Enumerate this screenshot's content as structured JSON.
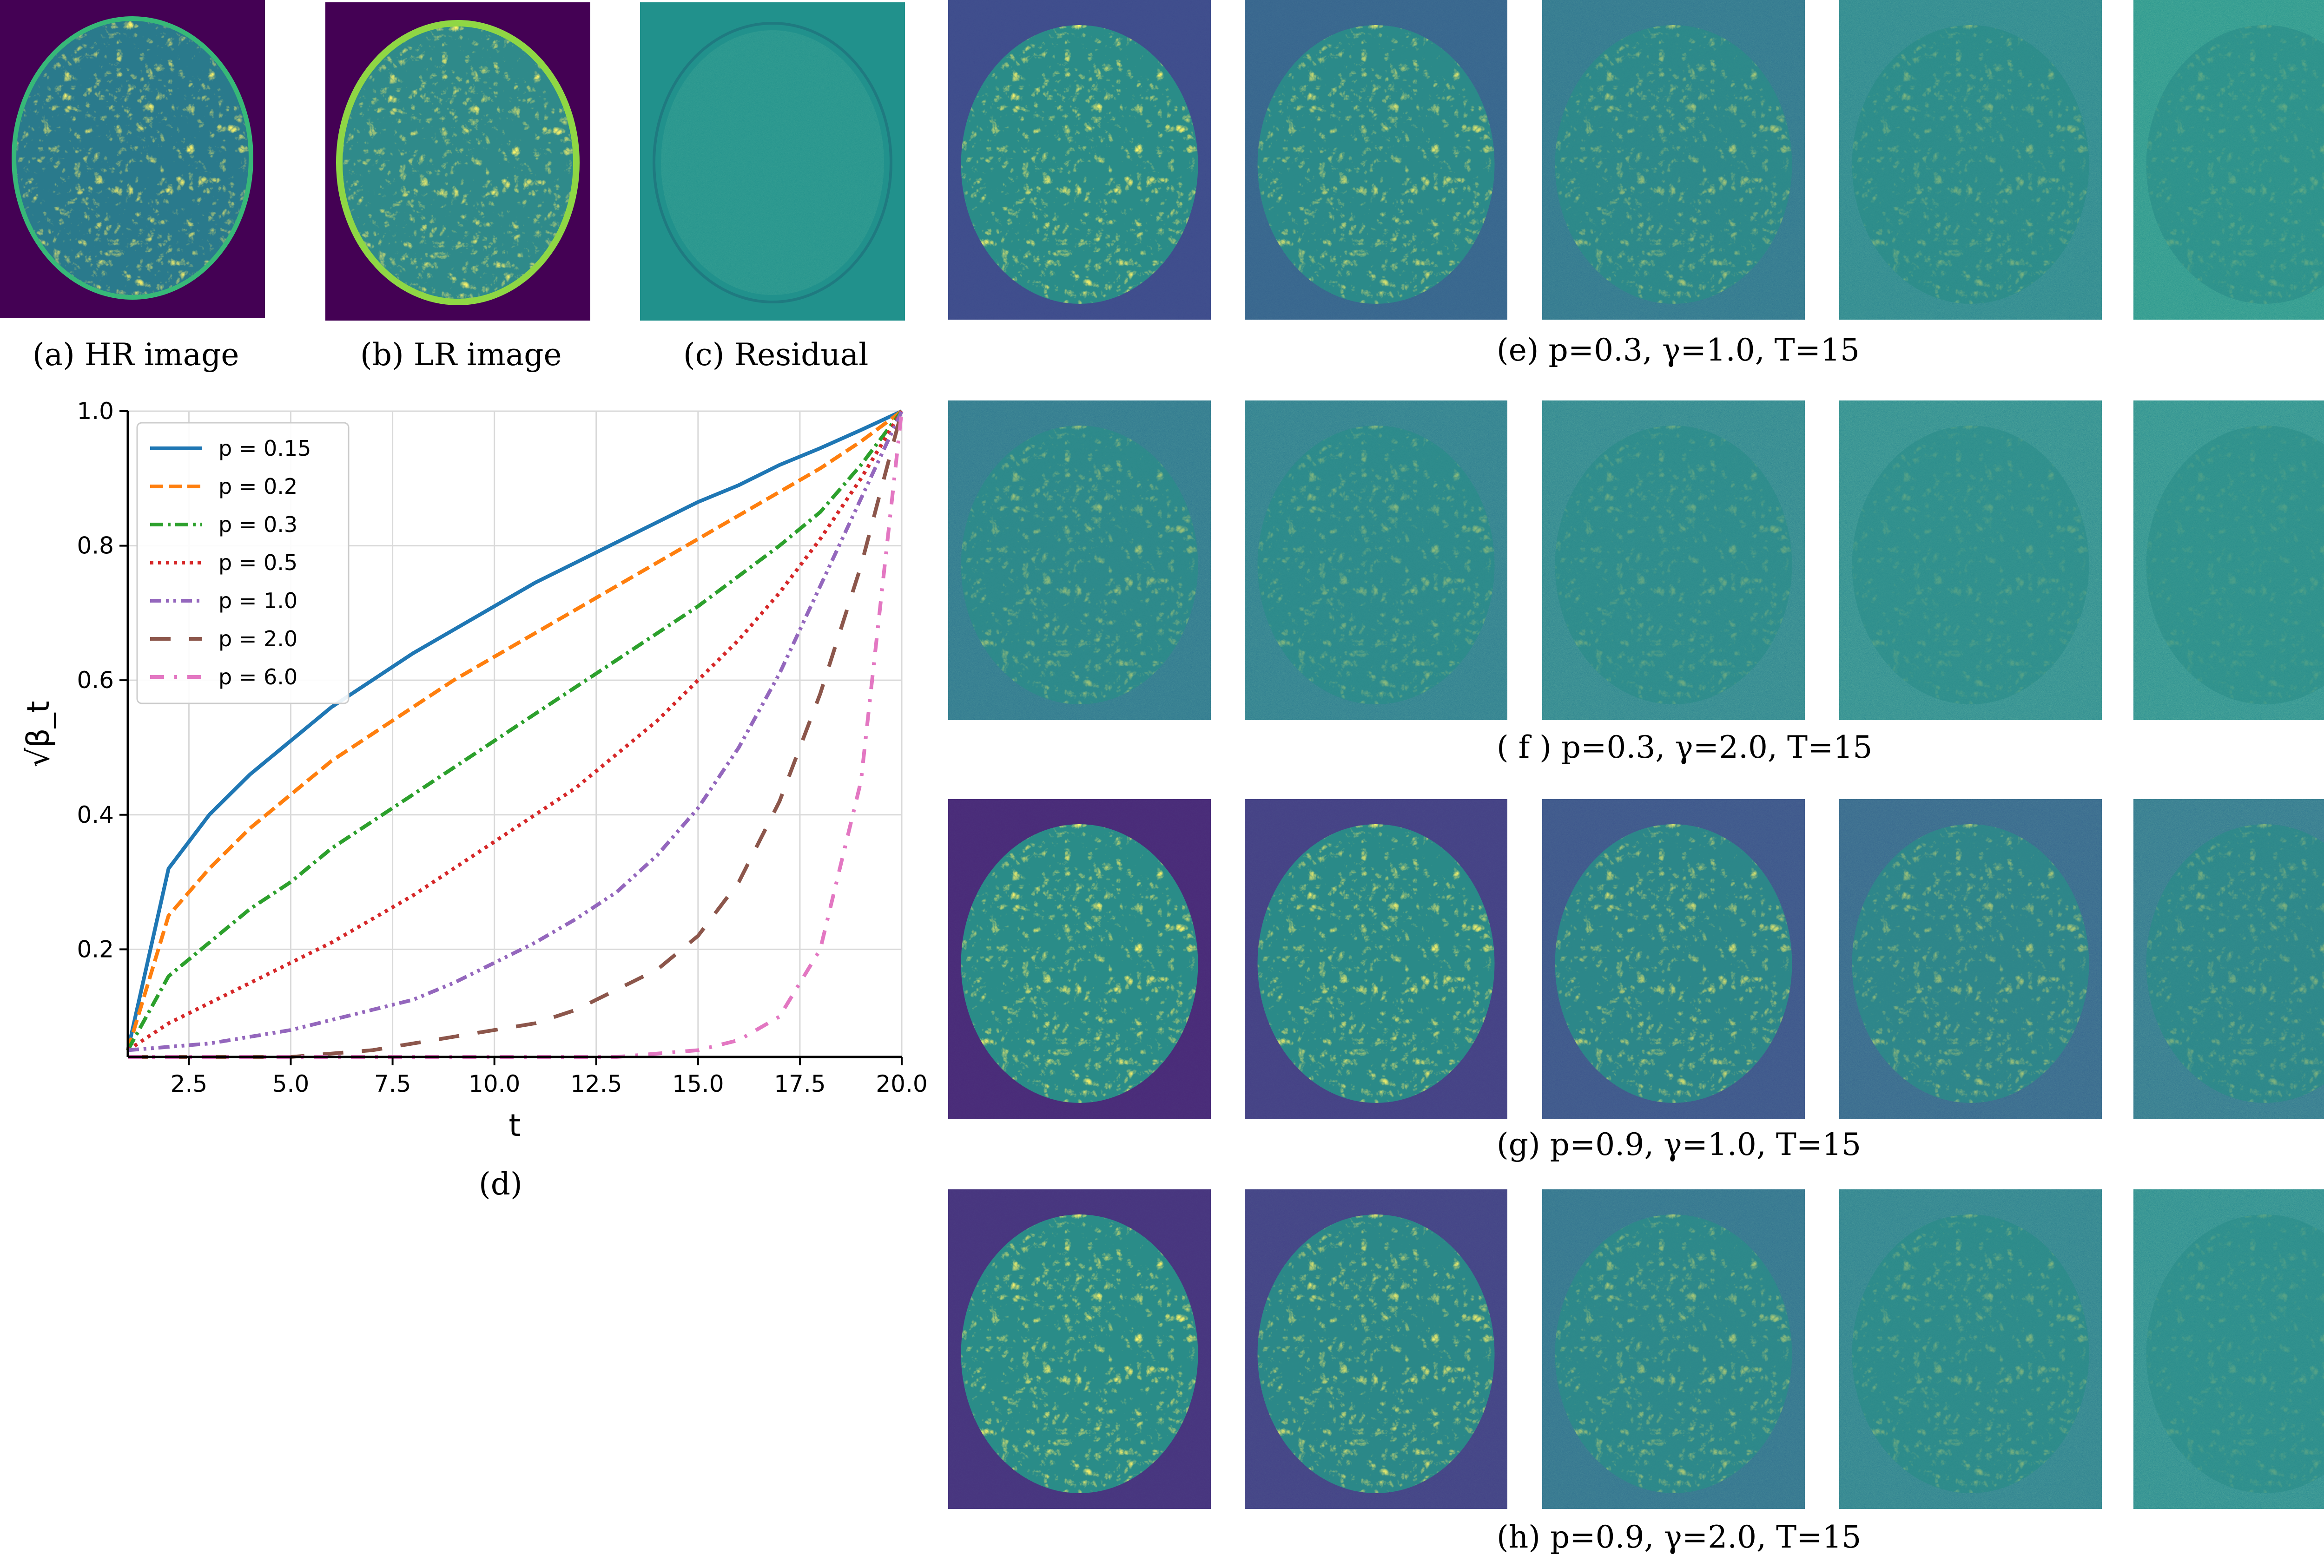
{
  "figure": {
    "top_captions": {
      "hr": "(a) HR image",
      "lr": "(b) LR image",
      "residual": "(c) Residual"
    },
    "chart_caption": "(d)",
    "row_captions": [
      "(e) p=0.3, γ=1.0, T=15",
      "( f ) p=0.3, γ=2.0, T=15",
      "(g) p=0.9, γ=1.0, T=15",
      "(h) p=0.9, γ=2.0, T=15"
    ],
    "colors": {
      "viridis_bg_dark": "#440154",
      "viridis_blue": "#3b528b",
      "viridis_teal": "#21918c",
      "viridis_green": "#5ec962",
      "viridis_yellow": "#fde725"
    }
  },
  "chart_data": {
    "type": "line",
    "title": "",
    "xlabel": "t",
    "ylabel": "√β_t",
    "xlim": [
      1,
      20
    ],
    "ylim": [
      0.04,
      1.0
    ],
    "xticks": [
      "2.5",
      "5.0",
      "7.5",
      "10.0",
      "12.5",
      "15.0",
      "17.5",
      "20.0"
    ],
    "yticks": [
      "0.2",
      "0.4",
      "0.6",
      "0.8",
      "1.0"
    ],
    "grid": true,
    "legend_position": "top-left",
    "x": [
      1,
      2,
      3,
      4,
      5,
      6,
      7,
      8,
      9,
      10,
      11,
      12,
      13,
      14,
      15,
      16,
      17,
      18,
      19,
      20
    ],
    "series": [
      {
        "name": "p = 0.15",
        "color": "#1f77b4",
        "dash": "solid",
        "values": [
          0.05,
          0.32,
          0.4,
          0.46,
          0.51,
          0.56,
          0.6,
          0.64,
          0.675,
          0.71,
          0.745,
          0.775,
          0.805,
          0.835,
          0.865,
          0.89,
          0.92,
          0.945,
          0.972,
          1.0
        ]
      },
      {
        "name": "p = 0.2",
        "color": "#ff7f0e",
        "dash": "dashed",
        "values": [
          0.05,
          0.25,
          0.32,
          0.38,
          0.43,
          0.48,
          0.52,
          0.56,
          0.6,
          0.635,
          0.67,
          0.705,
          0.74,
          0.775,
          0.81,
          0.845,
          0.88,
          0.915,
          0.955,
          1.0
        ]
      },
      {
        "name": "p = 0.3",
        "color": "#2ca02c",
        "dash": "dashdot",
        "values": [
          0.05,
          0.16,
          0.21,
          0.26,
          0.3,
          0.35,
          0.39,
          0.43,
          0.47,
          0.51,
          0.55,
          0.59,
          0.63,
          0.67,
          0.71,
          0.755,
          0.8,
          0.85,
          0.92,
          1.0
        ]
      },
      {
        "name": "p = 0.5",
        "color": "#d62728",
        "dash": "dotted",
        "values": [
          0.05,
          0.09,
          0.12,
          0.15,
          0.18,
          0.21,
          0.245,
          0.28,
          0.32,
          0.36,
          0.4,
          0.44,
          0.49,
          0.54,
          0.6,
          0.66,
          0.73,
          0.81,
          0.9,
          1.0
        ]
      },
      {
        "name": "p = 1.0",
        "color": "#9467bd",
        "dash": "dashdotdot",
        "values": [
          0.05,
          0.055,
          0.06,
          0.07,
          0.08,
          0.095,
          0.11,
          0.125,
          0.15,
          0.18,
          0.21,
          0.245,
          0.285,
          0.34,
          0.41,
          0.5,
          0.61,
          0.74,
          0.87,
          1.0
        ]
      },
      {
        "name": "p = 2.0",
        "color": "#8c564b",
        "dash": "longdash",
        "values": [
          0.04,
          0.04,
          0.04,
          0.04,
          0.04,
          0.045,
          0.05,
          0.06,
          0.07,
          0.08,
          0.09,
          0.11,
          0.14,
          0.17,
          0.22,
          0.3,
          0.42,
          0.58,
          0.77,
          1.0
        ]
      },
      {
        "name": "p = 6.0",
        "color": "#e377c2",
        "dash": "loosedashdot",
        "values": [
          0.04,
          0.04,
          0.04,
          0.04,
          0.04,
          0.04,
          0.04,
          0.04,
          0.04,
          0.04,
          0.04,
          0.04,
          0.04,
          0.045,
          0.05,
          0.065,
          0.1,
          0.2,
          0.45,
          1.0
        ]
      }
    ]
  }
}
